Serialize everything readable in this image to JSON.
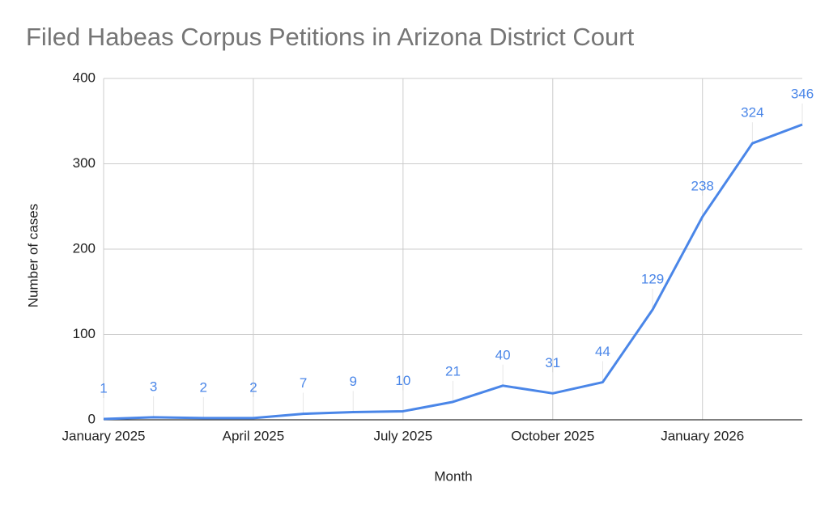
{
  "chart_data": {
    "type": "line",
    "title": "Filed Habeas Corpus Petitions in Arizona District Court",
    "x_label": "Month",
    "y_label": "Number of cases",
    "categories": [
      "January 2025",
      null,
      null,
      "April 2025",
      null,
      null,
      "July 2025",
      null,
      null,
      "October 2025",
      null,
      null,
      "January 2026",
      null,
      null
    ],
    "series": [
      {
        "name": "Cases",
        "color": "#4a86e8",
        "values": [
          1,
          3,
          2,
          2,
          7,
          9,
          10,
          21,
          40,
          31,
          44,
          129,
          238,
          324,
          346
        ]
      }
    ],
    "ylim": [
      0,
      400
    ],
    "yticks": [
      0,
      100,
      200,
      300,
      400
    ],
    "grid": true
  }
}
